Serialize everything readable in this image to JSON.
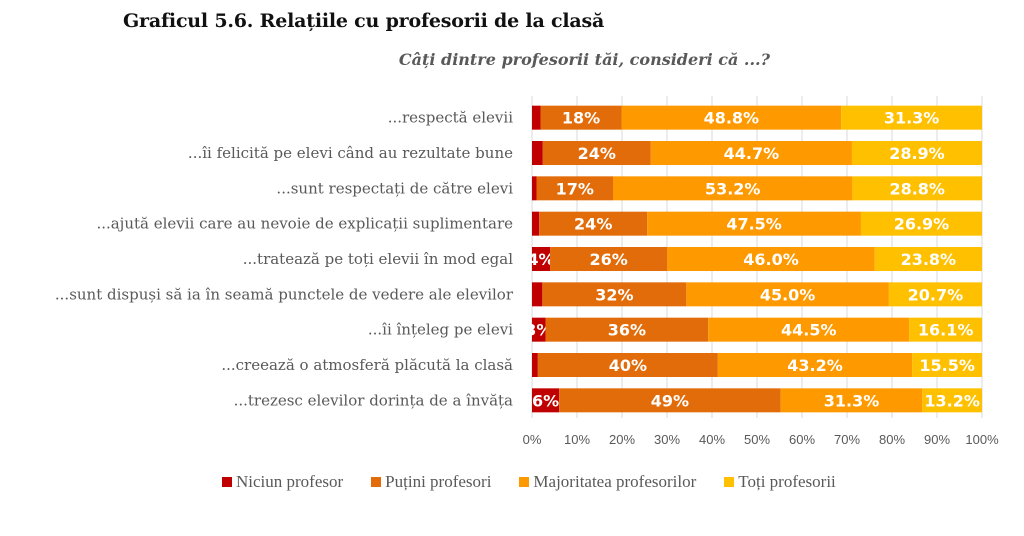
{
  "title": "Graficul 5.6. Relațiile cu profesorii de la clasă",
  "subtitle": "Câți dintre profesorii tăi, consideri că ...?",
  "chart_data": {
    "type": "bar",
    "orientation": "horizontal",
    "stacked": "percent",
    "title": "Graficul 5.6. Relațiile cu profesorii de la clasă",
    "subtitle": "Câți dintre profesorii tăi, consideri că ...?",
    "xlabel": "",
    "ylabel": "",
    "xlim": [
      0,
      100
    ],
    "x_ticks": [
      "0%",
      "10%",
      "20%",
      "30%",
      "40%",
      "50%",
      "60%",
      "70%",
      "80%",
      "90%",
      "100%"
    ],
    "grid": "vertical",
    "legend_position": "bottom",
    "categories": [
      "...respectă elevii",
      "...îi felicită pe elevi când au rezultate bune",
      "...sunt respectați de către elevi",
      "...ajută elevii care au nevoie de explicații suplimentare",
      "...tratează pe toți elevii în mod egal",
      "...sunt dispuși să ia în seamă punctele de vedere ale elevilor",
      "...îi înțeleg pe elevi",
      "...creează o atmosferă plăcută la clasă",
      "...trezesc elevilor dorința de a învăța"
    ],
    "series": [
      {
        "name": "Niciun profesor",
        "color": "#C00000",
        "values": [
          1.9,
          2.4,
          1.0,
          1.6,
          4,
          2.3,
          3,
          1.3,
          6
        ],
        "labels": [
          "",
          "",
          "",
          "",
          "4%",
          "",
          "3%",
          "",
          "6%"
        ]
      },
      {
        "name": "Puțini profesori",
        "color": "#E36C0A",
        "values": [
          18,
          24,
          17,
          24,
          26,
          32,
          36,
          40,
          49
        ],
        "labels": [
          "18%",
          "24%",
          "17%",
          "24%",
          "26%",
          "32%",
          "36%",
          "40%",
          "49%"
        ]
      },
      {
        "name": "Majoritatea profesorilor",
        "color": "#FF9900",
        "values": [
          48.8,
          44.7,
          53.2,
          47.5,
          46.0,
          45.0,
          44.5,
          43.2,
          31.3
        ],
        "labels": [
          "48.8%",
          "44.7%",
          "53.2%",
          "47.5%",
          "46.0%",
          "45.0%",
          "44.5%",
          "43.2%",
          "31.3%"
        ]
      },
      {
        "name": "Toți profesorii",
        "color": "#FFC000",
        "values": [
          31.3,
          28.9,
          28.8,
          26.9,
          23.8,
          20.7,
          16.1,
          15.5,
          13.2
        ],
        "labels": [
          "31.3%",
          "28.9%",
          "28.8%",
          "26.9%",
          "23.8%",
          "20.7%",
          "16.1%",
          "15.5%",
          "13.2%"
        ]
      }
    ]
  },
  "colors": {
    "text": "#595959",
    "grid": "#D9D9D9"
  }
}
